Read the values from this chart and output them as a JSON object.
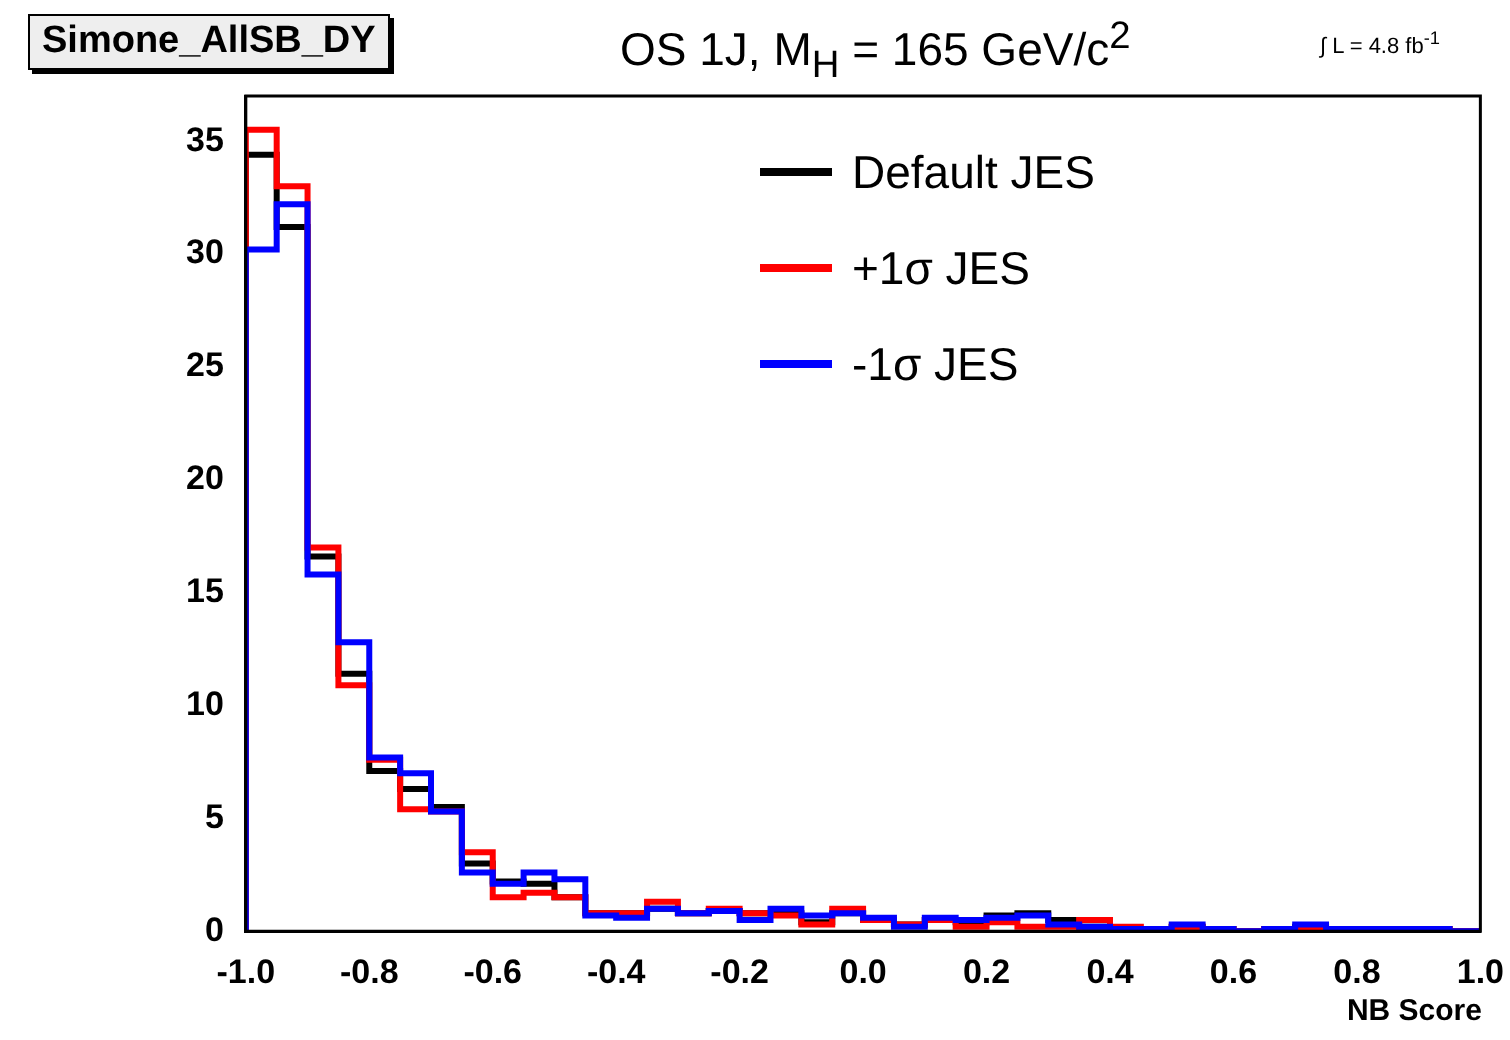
{
  "chart_data": {
    "type": "histogram",
    "title": "OS 1J, M$_{H}$ = 165 GeV/c$^{2}$",
    "xlabel": "NB Score",
    "annotations": [
      "Simone_AllSB_DY",
      "∫ L = 4.8 fb$^{-1}$"
    ],
    "bins": [
      -1.0,
      -0.95,
      -0.9,
      -0.85,
      -0.8,
      -0.75,
      -0.7,
      -0.65,
      -0.6,
      -0.55,
      -0.5,
      -0.45,
      -0.4,
      -0.35,
      -0.3,
      -0.25,
      -0.2,
      -0.15,
      -0.1,
      -0.05,
      0.0,
      0.05,
      0.1,
      0.15,
      0.2,
      0.25,
      0.3,
      0.35,
      0.4,
      0.45,
      0.5,
      0.55,
      0.6,
      0.65,
      0.7,
      0.75,
      0.8,
      0.85,
      0.9,
      0.95,
      1.0
    ],
    "series": [
      {
        "name": "Default JES",
        "color": "#000000",
        "values": [
          34.4,
          31.2,
          16.6,
          11.4,
          7.1,
          6.3,
          5.5,
          3.0,
          2.2,
          2.1,
          1.5,
          0.8,
          0.8,
          1.0,
          0.8,
          0.9,
          0.8,
          0.8,
          0.4,
          0.8,
          0.5,
          0.3,
          0.5,
          0.4,
          0.7,
          0.8,
          0.5,
          0.2,
          0.1,
          0.1,
          0.2,
          0.1,
          0.0,
          0.1,
          0.2,
          0.1,
          0.1,
          0.1,
          0.1,
          0.0
        ]
      },
      {
        "name": "+1σ JES",
        "color": "#ff0000",
        "values": [
          35.5,
          33.0,
          17.0,
          10.9,
          7.6,
          5.4,
          5.3,
          3.5,
          1.5,
          1.7,
          1.5,
          0.8,
          0.8,
          1.3,
          0.8,
          1.0,
          0.8,
          0.7,
          0.3,
          1.0,
          0.5,
          0.3,
          0.5,
          0.2,
          0.4,
          0.2,
          0.2,
          0.5,
          0.2,
          0.1,
          0.2,
          0.1,
          0.0,
          0.1,
          0.1,
          0.1,
          0.1,
          0.1,
          0.1,
          0.0
        ]
      },
      {
        "name": "-1σ JES",
        "color": "#0000ff",
        "values": [
          30.2,
          32.2,
          15.8,
          12.8,
          7.7,
          7.0,
          5.3,
          2.6,
          2.1,
          2.6,
          2.3,
          0.7,
          0.6,
          1.0,
          0.8,
          0.9,
          0.5,
          1.0,
          0.7,
          0.8,
          0.6,
          0.2,
          0.6,
          0.5,
          0.6,
          0.7,
          0.3,
          0.2,
          0.1,
          0.1,
          0.3,
          0.1,
          0.0,
          0.1,
          0.3,
          0.1,
          0.1,
          0.1,
          0.1,
          0.0
        ]
      }
    ],
    "xlim": [
      -1.0,
      1.0
    ],
    "xticks": [
      {
        "value": -1.0,
        "label": "-1.0"
      },
      {
        "value": -0.8,
        "label": "-0.8"
      },
      {
        "value": -0.6,
        "label": "-0.6"
      },
      {
        "value": -0.4,
        "label": "-0.4"
      },
      {
        "value": -0.2,
        "label": "-0.2"
      },
      {
        "value": 0,
        "label": "0.0"
      },
      {
        "value": 0.2,
        "label": "0.2"
      },
      {
        "value": 0.4,
        "label": "0.4"
      },
      {
        "value": 0.6,
        "label": "0.6"
      },
      {
        "value": 0.8,
        "label": "0.8"
      },
      {
        "value": 1.0,
        "label": "1.0"
      }
    ],
    "ylim": [
      0,
      37
    ],
    "yticks": [
      0,
      5,
      10,
      15,
      20,
      25,
      30,
      35
    ],
    "grid": false,
    "legend": "top right",
    "line_style": "solid"
  }
}
